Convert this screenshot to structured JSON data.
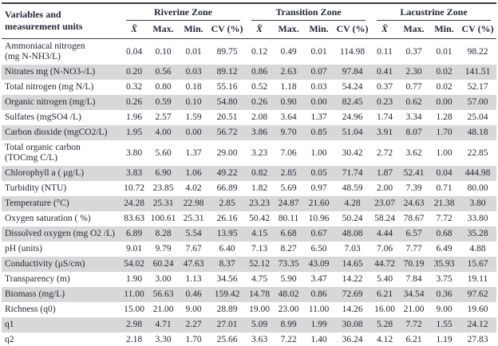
{
  "table": {
    "corner_header": "Variables and\nmeasurement units",
    "zones": [
      "Riverine Zone",
      "Transition Zone",
      "Lacustrine Zone"
    ],
    "stat_headers": [
      "X̄",
      "Max.",
      "Min.",
      "CV (%)"
    ],
    "stripe_color": "#d8d8d8",
    "rule_color": "#3c3c3c",
    "rows": [
      {
        "label": "Ammoniacal nitrogen\n(mg N-NH3/L)",
        "values": [
          "0.04",
          "0.10",
          "0.01",
          "89.75",
          "0.12",
          "0.49",
          "0.01",
          "114.98",
          "0.11",
          "0.37",
          "0.01",
          "98.22"
        ]
      },
      {
        "label": "Nitrates mg (N-NO3-/L)",
        "values": [
          "0.20",
          "0.56",
          "0.03",
          "89.12",
          "0.86",
          "2.63",
          "0.07",
          "97.84",
          "0.41",
          "2.30",
          "0.02",
          "141.51"
        ]
      },
      {
        "label": "Total nitrogen (mg N/L)",
        "values": [
          "0.32",
          "0.80",
          "0.18",
          "55.16",
          "0.52",
          "1.18",
          "0.03",
          "54.24",
          "0.37",
          "0.77",
          "0.02",
          "52.17"
        ]
      },
      {
        "label": "Organic nitrogen (mg/L)",
        "values": [
          "0.26",
          "0.59",
          "0.10",
          "54.80",
          "0.26",
          "0.90",
          "0.00",
          "82.45",
          "0.23",
          "0.62",
          "0.00",
          "57.00"
        ]
      },
      {
        "label": "Sulfates (mgSO4 /L)",
        "values": [
          "1.96",
          "2.57",
          "1.59",
          "20.51",
          "2.08",
          "3.64",
          "1.37",
          "24.96",
          "1.74",
          "3.34",
          "1.28",
          "25.04"
        ]
      },
      {
        "label": "Carbon dioxide (mgCO2/L)",
        "values": [
          "1.95",
          "4.00",
          "0.00",
          "56.72",
          "3.86",
          "9.70",
          "0.85",
          "51.04",
          "3.91",
          "8.07",
          "1.70",
          "48.18"
        ]
      },
      {
        "label": "Total organic carbon\n(TOCmg C/L)",
        "values": [
          "3.80",
          "5.60",
          "1.37",
          "29.00",
          "3.23",
          "7.06",
          "1.00",
          "30.42",
          "2.72",
          "3.62",
          "1.00",
          "22.85"
        ]
      },
      {
        "label": "Chlorophyll a ( μg/L)",
        "values": [
          "3.83",
          "6.90",
          "1.06",
          "49.22",
          "0.82",
          "2.85",
          "0.05",
          "71.74",
          "1.87",
          "52.41",
          "0.04",
          "444.98"
        ]
      },
      {
        "label": "Turbidity (NTU)",
        "values": [
          "10.72",
          "23.85",
          "4.02",
          "66.89",
          "1.82",
          "5.69",
          "0.97",
          "48.59",
          "2.00",
          "7.39",
          "0.71",
          "80.00"
        ]
      },
      {
        "label": "Temperature (°C)",
        "values": [
          "24.28",
          "25.31",
          "22.98",
          "2.85",
          "23.23",
          "24.87",
          "21.60",
          "4.28",
          "23.07",
          "24.63",
          "21.38",
          "3.80"
        ]
      },
      {
        "label": "Oxygen saturation ( %)",
        "values": [
          "83.63",
          "100.61",
          "25.31",
          "26.16",
          "50.42",
          "80.11",
          "10.96",
          "50.24",
          "58.24",
          "78.67",
          "7.72",
          "33.80"
        ]
      },
      {
        "label": "Dissolved oxygen (mg O2 /L)",
        "values": [
          "6.89",
          "8.28",
          "5.54",
          "13.95",
          "4.15",
          "6.68",
          "0.67",
          "48.08",
          "4.44",
          "6.57",
          "0.68",
          "35.28"
        ]
      },
      {
        "label": "pH (units)",
        "values": [
          "9.01",
          "9.79",
          "7.67",
          "6.40",
          "7.13",
          "8.27",
          "6.50",
          "7.03",
          "7.06",
          "7.77",
          "6.49",
          "4.88"
        ]
      },
      {
        "label": "Conductivity (μS/cm)",
        "values": [
          "54.02",
          "60.24",
          "47.63",
          "8.37",
          "52.12",
          "73.35",
          "43.09",
          "14.65",
          "44.72",
          "70.19",
          "35.93",
          "15.67"
        ]
      },
      {
        "label": "Transparency (m)",
        "values": [
          "1.90",
          "3.00",
          "1.13",
          "34.56",
          "4.75",
          "5.90",
          "3.47",
          "14.22",
          "5.40",
          "7.84",
          "3.75",
          "19.11"
        ]
      },
      {
        "label": "Biomass (mg/L)",
        "values": [
          "11.00",
          "56.63",
          "0.46",
          "159.42",
          "14.78",
          "48.02",
          "0.86",
          "72.69",
          "6.21",
          "34.54",
          "0.36",
          "97.62"
        ]
      },
      {
        "label": "Richness (q0)",
        "values": [
          "15.00",
          "21.00",
          "9.00",
          "28.89",
          "19.00",
          "23.00",
          "11.00",
          "14.26",
          "16.00",
          "21.00",
          "9.00",
          "19.60"
        ]
      },
      {
        "label": "q1",
        "values": [
          "2.98",
          "4.71",
          "2.27",
          "27.01",
          "5.09",
          "8.99",
          "1.99",
          "30.08",
          "5.28",
          "7.72",
          "1.55",
          "24.12"
        ]
      },
      {
        "label": "q2",
        "values": [
          "2.18",
          "3.30",
          "1.70",
          "25.66",
          "3.63",
          "7.22",
          "1.40",
          "36.24",
          "4.12",
          "6.21",
          "1.19",
          "27.83"
        ]
      }
    ]
  }
}
